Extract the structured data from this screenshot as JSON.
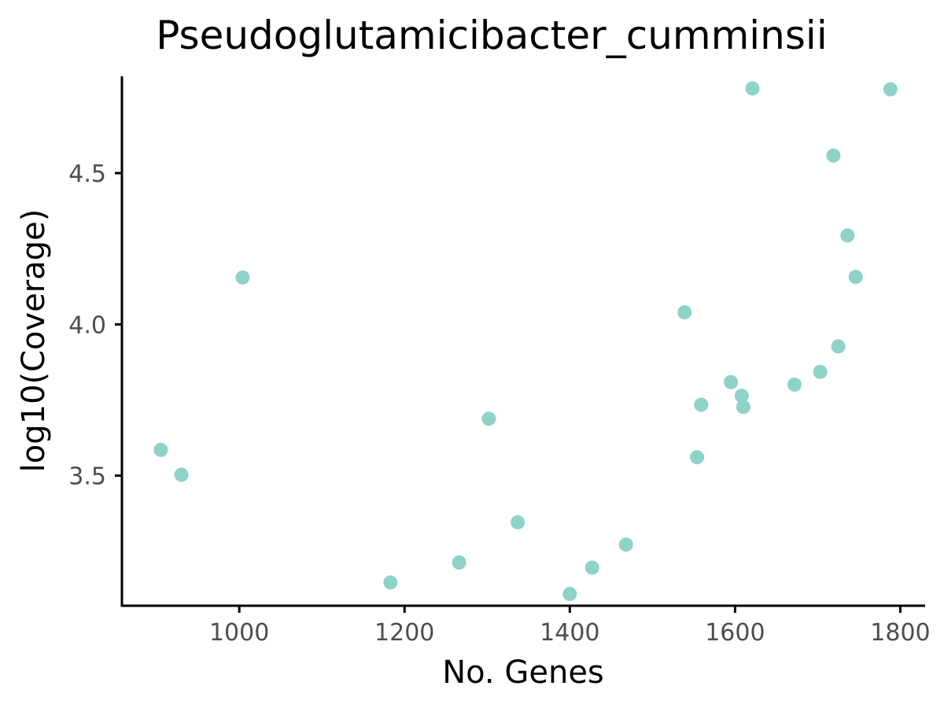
{
  "chart_data": {
    "type": "scatter",
    "title": "Pseudoglutamicibacter_cumminsii",
    "xlabel": "No. Genes",
    "ylabel": "log10(Coverage)",
    "xlim": [
      858,
      1830
    ],
    "ylim": [
      3.07,
      4.82
    ],
    "xticks": [
      1000,
      1200,
      1400,
      1600,
      1800
    ],
    "yticks": [
      3.5,
      4.0,
      4.5
    ],
    "xtick_labels": [
      "1000",
      "1200",
      "1400",
      "1600",
      "1800"
    ],
    "ytick_labels": [
      "3.5",
      "4.0",
      "4.5"
    ],
    "grid": false,
    "point_color": "#8dd3c7",
    "points": [
      {
        "x": 905,
        "y": 3.585
      },
      {
        "x": 930,
        "y": 3.503
      },
      {
        "x": 1004,
        "y": 4.155
      },
      {
        "x": 1183,
        "y": 3.147
      },
      {
        "x": 1266,
        "y": 3.213
      },
      {
        "x": 1302,
        "y": 3.688
      },
      {
        "x": 1337,
        "y": 3.346
      },
      {
        "x": 1400,
        "y": 3.109
      },
      {
        "x": 1427,
        "y": 3.196
      },
      {
        "x": 1468,
        "y": 3.272
      },
      {
        "x": 1539,
        "y": 4.04
      },
      {
        "x": 1554,
        "y": 3.561
      },
      {
        "x": 1559,
        "y": 3.734
      },
      {
        "x": 1595,
        "y": 3.809
      },
      {
        "x": 1608,
        "y": 3.764
      },
      {
        "x": 1610,
        "y": 3.727
      },
      {
        "x": 1621,
        "y": 4.78
      },
      {
        "x": 1672,
        "y": 3.801
      },
      {
        "x": 1703,
        "y": 3.843
      },
      {
        "x": 1719,
        "y": 4.558
      },
      {
        "x": 1725,
        "y": 3.927
      },
      {
        "x": 1736,
        "y": 4.294
      },
      {
        "x": 1746,
        "y": 4.157
      },
      {
        "x": 1788,
        "y": 4.777
      }
    ]
  }
}
